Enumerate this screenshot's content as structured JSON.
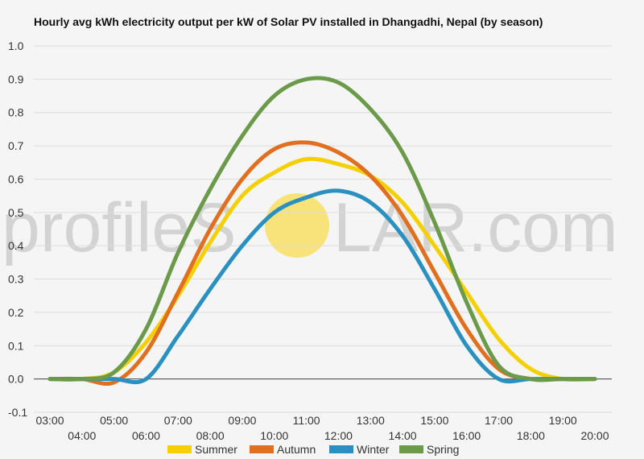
{
  "chart_data": {
    "type": "line",
    "title": "Hourly avg kWh electricity output per kW of Solar PV installed in Dhangadhi, Nepal (by season)",
    "xlabel": "",
    "ylabel": "",
    "ylim": [
      -0.1,
      1.0
    ],
    "yticks": [
      "-0.1",
      "0.0",
      "0.1",
      "0.2",
      "0.3",
      "0.4",
      "0.5",
      "0.6",
      "0.7",
      "0.8",
      "0.9",
      "1.0"
    ],
    "x": [
      "03:00",
      "04:00",
      "05:00",
      "06:00",
      "07:00",
      "08:00",
      "09:00",
      "10:00",
      "11:00",
      "12:00",
      "13:00",
      "14:00",
      "15:00",
      "16:00",
      "17:00",
      "18:00",
      "19:00",
      "20:00"
    ],
    "grid": true,
    "legend_position": "bottom",
    "series": [
      {
        "name": "Summer",
        "color": "#f5d000",
        "values": [
          0.0,
          0.0,
          0.02,
          0.11,
          0.25,
          0.41,
          0.55,
          0.62,
          0.66,
          0.645,
          0.61,
          0.53,
          0.4,
          0.26,
          0.12,
          0.03,
          0.0,
          0.0
        ]
      },
      {
        "name": "Autumn",
        "color": "#e07020",
        "values": [
          0.0,
          0.0,
          -0.01,
          0.08,
          0.26,
          0.45,
          0.6,
          0.69,
          0.71,
          0.68,
          0.61,
          0.49,
          0.32,
          0.15,
          0.03,
          0.0,
          0.0,
          0.0
        ]
      },
      {
        "name": "Winter",
        "color": "#2a90c0",
        "values": [
          0.0,
          0.0,
          0.0,
          0.0,
          0.13,
          0.27,
          0.4,
          0.5,
          0.545,
          0.565,
          0.53,
          0.43,
          0.27,
          0.1,
          0.0,
          0.0,
          0.0,
          0.0
        ]
      },
      {
        "name": "Spring",
        "color": "#6a9a4a",
        "values": [
          0.0,
          0.0,
          0.02,
          0.15,
          0.38,
          0.57,
          0.73,
          0.85,
          0.9,
          0.89,
          0.81,
          0.68,
          0.47,
          0.23,
          0.04,
          0.0,
          0.0,
          0.0
        ]
      }
    ]
  },
  "watermark": {
    "left_text": "profileS",
    "right_text": "LAR.com",
    "sun_color": "#f8e27a"
  },
  "colors": {
    "grid": "#dcdcdc",
    "zero_line": "#444444",
    "background": "#f5f5f5"
  }
}
